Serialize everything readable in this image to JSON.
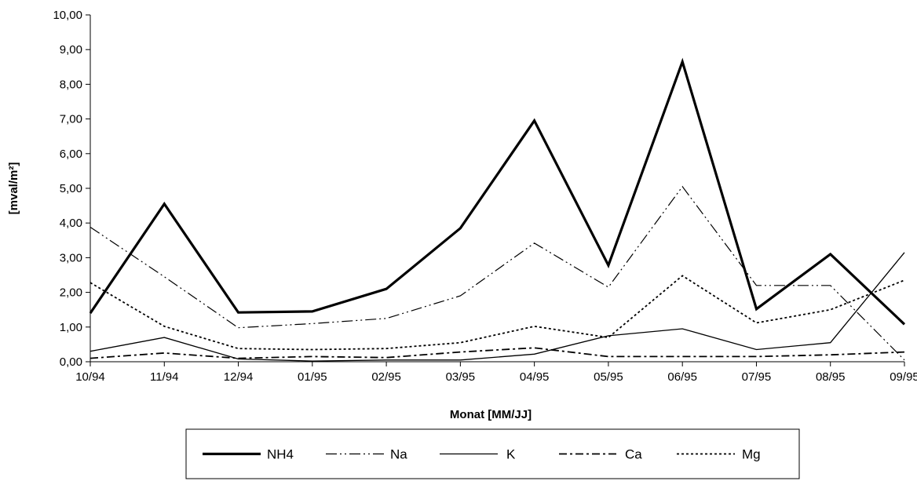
{
  "chart_data": {
    "type": "line",
    "title": "",
    "xlabel": "Monat [MM/JJ]",
    "ylabel": "[mval/m²]",
    "ylim": [
      0,
      10
    ],
    "y_ticks": [
      "0,00",
      "1,00",
      "2,00",
      "3,00",
      "4,00",
      "5,00",
      "6,00",
      "7,00",
      "8,00",
      "9,00",
      "10,00"
    ],
    "grid": false,
    "legend_position": "bottom",
    "categories": [
      "10/94",
      "11/94",
      "12/94",
      "01/95",
      "02/95",
      "03/95",
      "04/95",
      "05/95",
      "06/95",
      "07/95",
      "08/95",
      "09/95"
    ],
    "series": [
      {
        "name": "NH4",
        "style": "solid-bold",
        "color": "#000000",
        "values": [
          1.4,
          4.55,
          1.42,
          1.45,
          2.1,
          3.85,
          6.95,
          2.78,
          8.65,
          1.52,
          3.1,
          1.08
        ]
      },
      {
        "name": "Na",
        "style": "dash-dot-dot",
        "color": "#000000",
        "values": [
          3.88,
          2.45,
          0.98,
          1.1,
          1.25,
          1.9,
          3.42,
          2.15,
          5.05,
          2.2,
          2.2,
          0.05
        ]
      },
      {
        "name": "K",
        "style": "solid-thin",
        "color": "#000000",
        "values": [
          0.3,
          0.7,
          0.08,
          0.02,
          0.05,
          0.05,
          0.22,
          0.75,
          0.95,
          0.35,
          0.55,
          3.15
        ]
      },
      {
        "name": "Ca",
        "style": "dash-dot",
        "color": "#000000",
        "values": [
          0.1,
          0.25,
          0.1,
          0.15,
          0.12,
          0.28,
          0.4,
          0.15,
          0.15,
          0.15,
          0.2,
          0.28
        ]
      },
      {
        "name": "Mg",
        "style": "dotted",
        "color": "#000000",
        "values": [
          2.28,
          1.02,
          0.38,
          0.35,
          0.38,
          0.55,
          1.02,
          0.7,
          2.48,
          1.12,
          1.5,
          2.35
        ]
      }
    ]
  }
}
